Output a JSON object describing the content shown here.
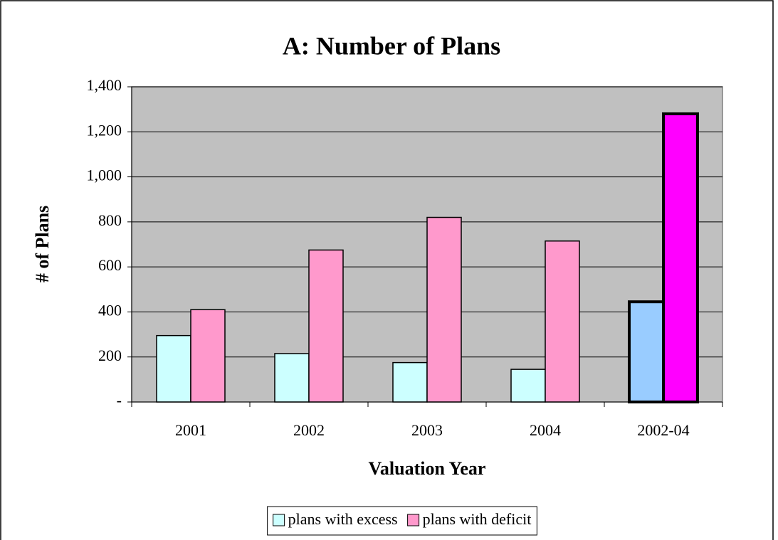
{
  "chart_data": {
    "type": "bar",
    "title": "A: Number of Plans",
    "x_label": "Valuation Year",
    "y_label": "# of Plans",
    "categories": [
      "2001",
      "2002",
      "2003",
      "2004",
      "2002-04"
    ],
    "series": [
      {
        "name": "plans with excess",
        "color": "#ccffff",
        "colors": [
          "#ccffff",
          "#ccffff",
          "#ccffff",
          "#ccffff",
          "#99ccff"
        ],
        "values": [
          295,
          215,
          175,
          145,
          445
        ]
      },
      {
        "name": "plans with deficit",
        "color": "#ff99cc",
        "colors": [
          "#ff99cc",
          "#ff99cc",
          "#ff99cc",
          "#ff99cc",
          "#ff00ff"
        ],
        "values": [
          410,
          675,
          820,
          715,
          1280
        ]
      }
    ],
    "ylim": [
      0,
      1400
    ],
    "yticks": [
      {
        "value": 0,
        "label": "-"
      },
      200,
      400,
      600,
      800,
      {
        "value": 1000,
        "label": "1,000"
      },
      {
        "value": 1200,
        "label": "1,200"
      },
      {
        "value": 1400,
        "label": "1,400"
      }
    ],
    "grid": true,
    "plot_background": "#c0c0c0",
    "legend": "bottom"
  }
}
